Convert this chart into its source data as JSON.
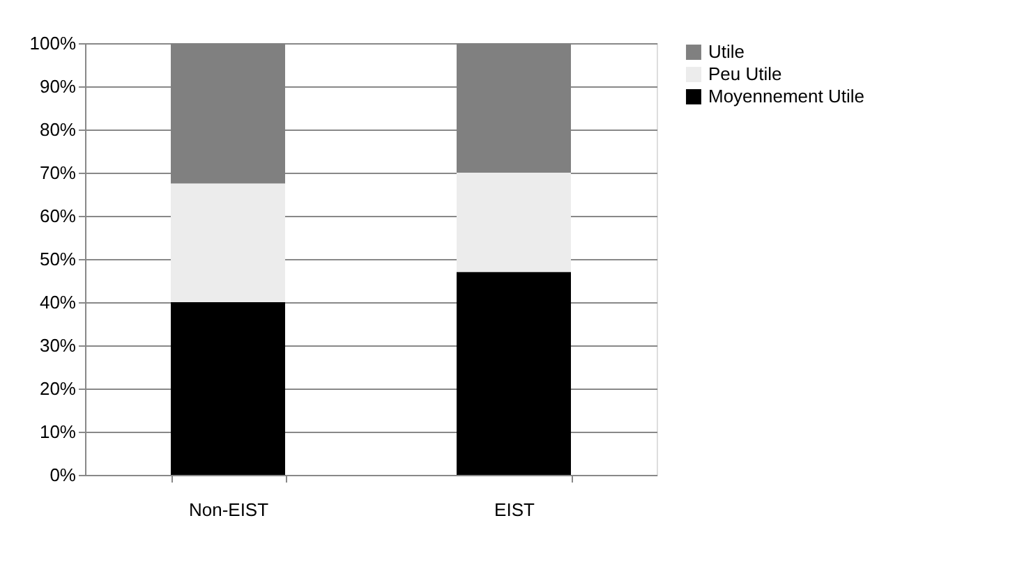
{
  "chart_data": {
    "type": "bar",
    "stacked": true,
    "categories": [
      "Non-EIST",
      "EIST"
    ],
    "series": [
      {
        "name": "Moyennement Utile",
        "color": "#000000",
        "values": [
          40,
          47
        ]
      },
      {
        "name": "Peu Utile",
        "color": "#ececec",
        "values": [
          27.5,
          23
        ]
      },
      {
        "name": "Utile",
        "color": "#808080",
        "values": [
          32.5,
          30
        ]
      }
    ],
    "ylim": [
      0,
      100
    ],
    "yticks": [
      {
        "value": 0,
        "label": "0%"
      },
      {
        "value": 10,
        "label": "10%"
      },
      {
        "value": 20,
        "label": "20%"
      },
      {
        "value": 30,
        "label": "30%"
      },
      {
        "value": 40,
        "label": "40%"
      },
      {
        "value": 50,
        "label": "50%"
      },
      {
        "value": 60,
        "label": "60%"
      },
      {
        "value": 70,
        "label": "70%"
      },
      {
        "value": 80,
        "label": "80%"
      },
      {
        "value": 90,
        "label": "90%"
      },
      {
        "value": 100,
        "label": "100%"
      }
    ],
    "grid": "y",
    "legend": "right"
  }
}
